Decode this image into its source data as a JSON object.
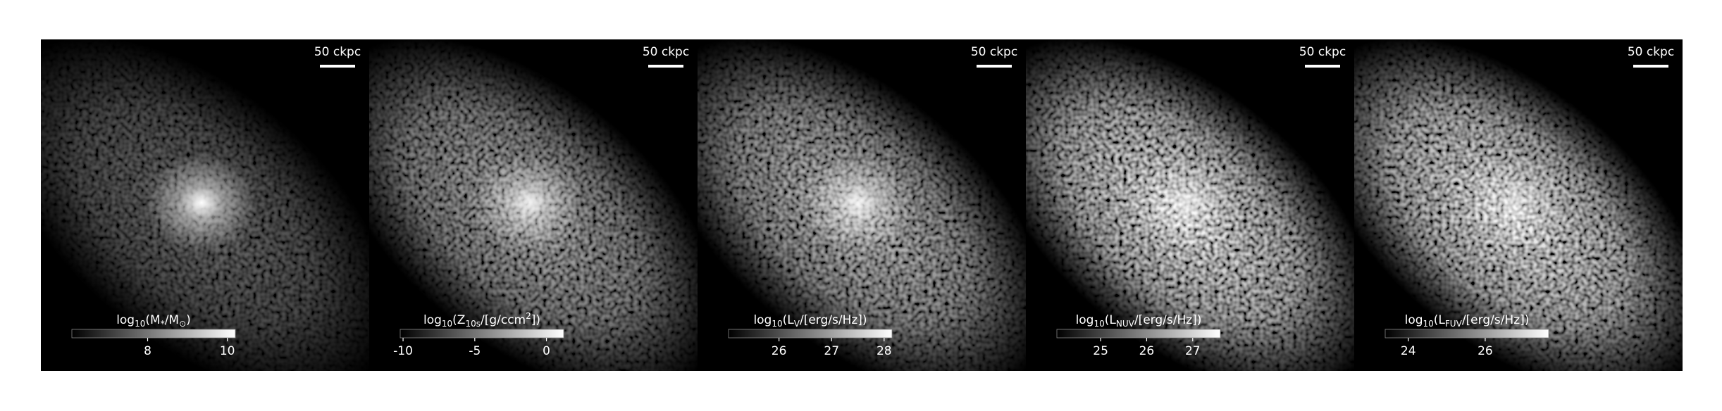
{
  "chart_data": [
    {
      "type": "image",
      "scalebar_label": "50 ckpc",
      "colorbar_label": [
        {
          "text": "log"
        },
        {
          "text": "10",
          "sub": true
        },
        {
          "text": "(M"
        },
        {
          "text": "*",
          "sub": true
        },
        {
          "text": "/M"
        },
        {
          "text": "⊙",
          "sub": true
        },
        {
          "text": ")"
        }
      ],
      "clim": [
        6.1,
        10.2
      ],
      "cticks": [
        8,
        10
      ],
      "brightness": 0.55,
      "core": 1.0
    },
    {
      "type": "image",
      "scalebar_label": "50 ckpc",
      "colorbar_label": [
        {
          "text": "log"
        },
        {
          "text": "10",
          "sub": true
        },
        {
          "text": "(Z"
        },
        {
          "text": "10s",
          "sub": true
        },
        {
          "text": "/[g/ccm"
        },
        {
          "text": "2",
          "sup": true
        },
        {
          "text": "])"
        }
      ],
      "clim": [
        -10.2,
        1.2
      ],
      "cticks": [
        -10,
        -5,
        0
      ],
      "brightness": 0.9,
      "core": 0.9
    },
    {
      "type": "image",
      "scalebar_label": "50 ckpc",
      "colorbar_label": [
        {
          "text": "log"
        },
        {
          "text": "10",
          "sub": true
        },
        {
          "text": "(L"
        },
        {
          "text": "V",
          "sub": true
        },
        {
          "text": "/[erg/s/Hz])"
        }
      ],
      "clim": [
        25.04,
        28.15
      ],
      "cticks": [
        26,
        27,
        28
      ],
      "brightness": 1.0,
      "core": 0.9
    },
    {
      "type": "image",
      "scalebar_label": "50 ckpc",
      "colorbar_label": [
        {
          "text": "log"
        },
        {
          "text": "10",
          "sub": true
        },
        {
          "text": "(L"
        },
        {
          "text": "NUV",
          "sub": true
        },
        {
          "text": "/[erg/s/Hz])"
        }
      ],
      "clim": [
        24.05,
        27.6
      ],
      "cticks": [
        25,
        26,
        27
      ],
      "brightness": 1.3,
      "core": 0.7
    },
    {
      "type": "image",
      "scalebar_label": "50 ckpc",
      "colorbar_label": [
        {
          "text": "log"
        },
        {
          "text": "10",
          "sub": true
        },
        {
          "text": "(L"
        },
        {
          "text": "FUV",
          "sub": true
        },
        {
          "text": "/[erg/s/Hz])"
        }
      ],
      "clim": [
        23.4,
        27.65
      ],
      "cticks": [
        24,
        26
      ],
      "brightness": 1.4,
      "core": 0.6
    }
  ]
}
